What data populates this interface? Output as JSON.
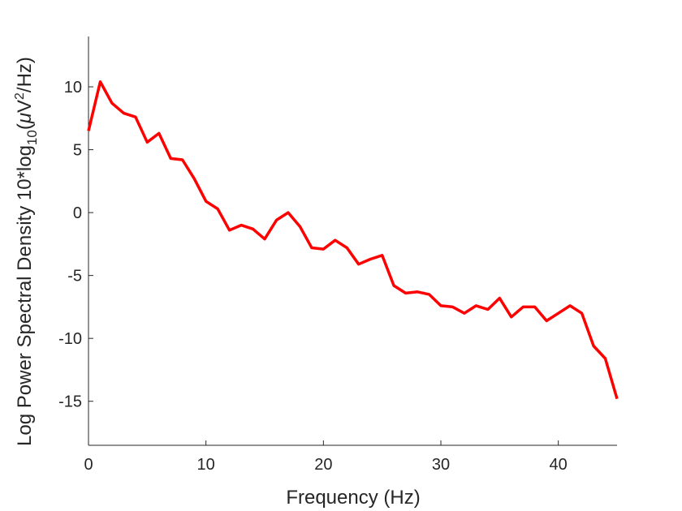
{
  "chart_data": {
    "type": "line",
    "title": "",
    "xlabel": "Frequency (Hz)",
    "ylabel": {
      "prefix": "Log Power Spectral Density 10*log",
      "sub": "10",
      "mid": "(",
      "mu": "μ",
      "v": "V",
      "sup": "2",
      "suffix": "/Hz)"
    },
    "xlim": [
      0,
      45
    ],
    "ylim": [
      -18.5,
      14
    ],
    "xticks": [
      0,
      10,
      20,
      30,
      40
    ],
    "yticks": [
      10,
      5,
      0,
      -5,
      -10,
      -15
    ],
    "grid": false,
    "line_color": "#ff0000",
    "axis_color": "#262626",
    "series": [
      {
        "x": [
          0,
          1,
          2,
          3,
          4,
          5,
          6,
          7,
          8,
          9,
          10,
          11,
          12,
          13,
          14,
          15,
          16,
          17,
          18,
          19,
          20,
          21,
          22,
          23,
          24,
          25,
          26,
          27,
          28,
          29,
          30,
          31,
          32,
          33,
          34,
          35,
          36,
          37,
          38,
          39,
          40,
          41,
          42,
          43,
          44,
          45
        ],
        "values": [
          6.5,
          10.4,
          8.7,
          7.9,
          7.6,
          5.6,
          6.3,
          4.3,
          4.2,
          2.7,
          0.9,
          0.3,
          -1.4,
          -1.0,
          -1.3,
          -2.1,
          -0.6,
          0.0,
          -1.1,
          -2.8,
          -2.9,
          -2.2,
          -2.8,
          -4.1,
          -3.7,
          -3.4,
          -5.8,
          -6.4,
          -6.3,
          -6.5,
          -7.4,
          -7.5,
          -8.0,
          -7.4,
          -7.7,
          -6.8,
          -8.3,
          -7.5,
          -7.5,
          -8.6,
          -8.0,
          -7.4,
          -8.0,
          -10.6,
          -11.6,
          -14.8
        ]
      }
    ]
  }
}
